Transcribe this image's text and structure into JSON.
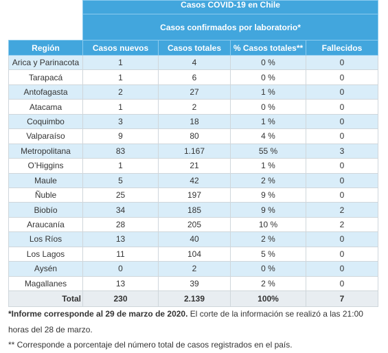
{
  "table": {
    "title": "Casos COVID-19 en Chile",
    "subtitle": "Casos confirmados por laboratorio*",
    "columns": [
      "Región",
      "Casos nuevos",
      "Casos totales",
      "% Casos totales**",
      "Fallecidos"
    ],
    "rows": [
      [
        "Arica y Parinacota",
        "1",
        "4",
        "0 %",
        "0"
      ],
      [
        "Tarapacá",
        "1",
        "6",
        "0 %",
        "0"
      ],
      [
        "Antofagasta",
        "2",
        "27",
        "1 %",
        "0"
      ],
      [
        "Atacama",
        "1",
        "2",
        "0 %",
        "0"
      ],
      [
        "Coquimbo",
        "3",
        "18",
        "1 %",
        "0"
      ],
      [
        "Valparaíso",
        "9",
        "80",
        "4 %",
        "0"
      ],
      [
        "Metropolitana",
        "83",
        "1.167",
        "55 %",
        "3"
      ],
      [
        "O’Higgins",
        "1",
        "21",
        "1 %",
        "0"
      ],
      [
        "Maule",
        "5",
        "42",
        "2 %",
        "0"
      ],
      [
        "Ñuble",
        "25",
        "197",
        "9 %",
        "0"
      ],
      [
        "Biobío",
        "34",
        "185",
        "9 %",
        "2"
      ],
      [
        "Araucanía",
        "28",
        "205",
        "10 %",
        "2"
      ],
      [
        "Los Ríos",
        "13",
        "40",
        "2 %",
        "0"
      ],
      [
        "Los Lagos",
        "11",
        "104",
        "5 %",
        "0"
      ],
      [
        "Aysén",
        "0",
        "2",
        "0 %",
        "0"
      ],
      [
        "Magallanes",
        "13",
        "39",
        "2 %",
        "0"
      ]
    ],
    "total": [
      "Total",
      "230",
      "2.139",
      "100%",
      "7"
    ]
  },
  "notes": {
    "note1_bold": "*Informe corresponde al 29 de marzo de 2020.",
    "note1_rest": "El corte de la información se realizó a las 21:00 horas del 28 de marzo.",
    "note2": "** Corresponde a porcentaje del número total de casos registrados en el país."
  }
}
